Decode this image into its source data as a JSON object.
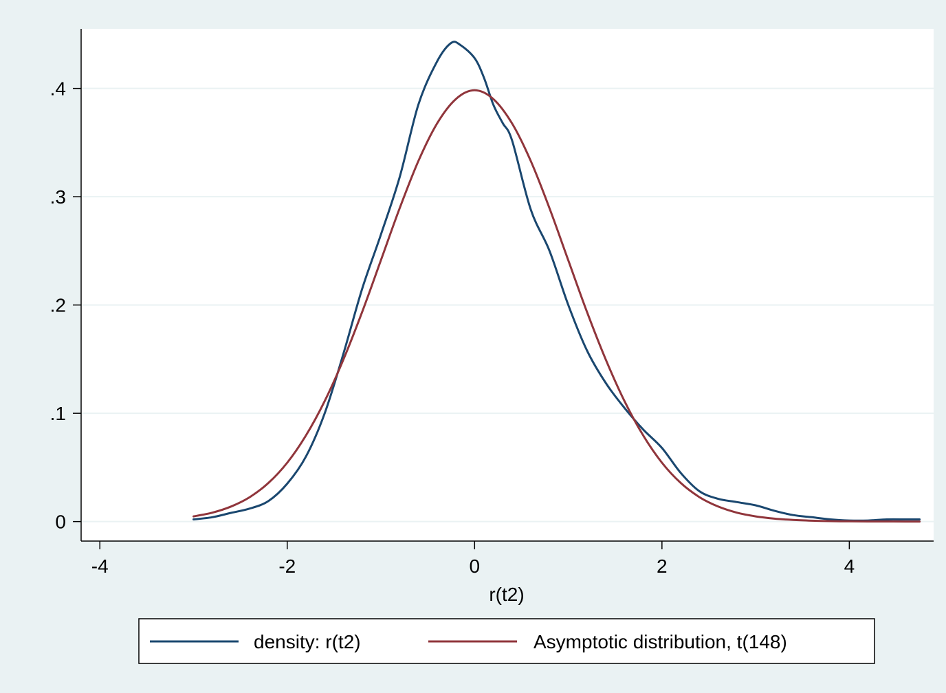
{
  "chart_data": {
    "type": "line",
    "title": "",
    "xlabel": "r(t2)",
    "ylabel": "",
    "xlim": [
      -4.2,
      4.9
    ],
    "ylim": [
      -0.018,
      0.455
    ],
    "grid": true,
    "legend_position": "bottom",
    "x_ticks": [
      {
        "value": -4,
        "label": "-4"
      },
      {
        "value": -2,
        "label": "-2"
      },
      {
        "value": 0,
        "label": "0"
      },
      {
        "value": 2,
        "label": "2"
      },
      {
        "value": 4,
        "label": "4"
      }
    ],
    "y_ticks": [
      {
        "value": 0,
        "label": "0"
      },
      {
        "value": 0.1,
        "label": ".1"
      },
      {
        "value": 0.2,
        "label": ".2"
      },
      {
        "value": 0.3,
        "label": ".3"
      },
      {
        "value": 0.4,
        "label": ".4"
      }
    ],
    "series": [
      {
        "name": "density: r(t2)",
        "color": "#1a476f",
        "points": [
          [
            -3.0,
            0.002
          ],
          [
            -2.8,
            0.004
          ],
          [
            -2.6,
            0.008
          ],
          [
            -2.4,
            0.012
          ],
          [
            -2.2,
            0.019
          ],
          [
            -2.0,
            0.035
          ],
          [
            -1.8,
            0.06
          ],
          [
            -1.6,
            0.1
          ],
          [
            -1.4,
            0.155
          ],
          [
            -1.2,
            0.215
          ],
          [
            -1.0,
            0.265
          ],
          [
            -0.8,
            0.318
          ],
          [
            -0.6,
            0.385
          ],
          [
            -0.4,
            0.425
          ],
          [
            -0.25,
            0.442
          ],
          [
            -0.15,
            0.44
          ],
          [
            0.0,
            0.428
          ],
          [
            0.1,
            0.41
          ],
          [
            0.2,
            0.385
          ],
          [
            0.3,
            0.368
          ],
          [
            0.4,
            0.352
          ],
          [
            0.6,
            0.288
          ],
          [
            0.8,
            0.25
          ],
          [
            1.0,
            0.2
          ],
          [
            1.2,
            0.158
          ],
          [
            1.4,
            0.128
          ],
          [
            1.6,
            0.105
          ],
          [
            1.8,
            0.085
          ],
          [
            2.0,
            0.068
          ],
          [
            2.2,
            0.045
          ],
          [
            2.4,
            0.028
          ],
          [
            2.6,
            0.021
          ],
          [
            2.8,
            0.018
          ],
          [
            3.0,
            0.015
          ],
          [
            3.2,
            0.01
          ],
          [
            3.4,
            0.006
          ],
          [
            3.6,
            0.004
          ],
          [
            3.8,
            0.002
          ],
          [
            4.0,
            0.001
          ],
          [
            4.2,
            0.001
          ],
          [
            4.4,
            0.002
          ],
          [
            4.6,
            0.002
          ],
          [
            4.75,
            0.002
          ]
        ]
      },
      {
        "name": "Asymptotic distribution, t(148)",
        "color": "#90353b",
        "df": 148,
        "points": [
          [
            -3.0,
            0.0048
          ],
          [
            -2.8,
            0.0082
          ],
          [
            -2.6,
            0.0139
          ],
          [
            -2.4,
            0.0226
          ],
          [
            -2.2,
            0.0357
          ],
          [
            -2.0,
            0.0544
          ],
          [
            -1.8,
            0.0795
          ],
          [
            -1.6,
            0.1113
          ],
          [
            -1.4,
            0.1497
          ],
          [
            -1.2,
            0.1936
          ],
          [
            -1.0,
            0.2413
          ],
          [
            -0.8,
            0.2893
          ],
          [
            -0.6,
            0.3329
          ],
          [
            -0.4,
            0.3677
          ],
          [
            -0.2,
            0.3902
          ],
          [
            0.0,
            0.3983
          ],
          [
            0.2,
            0.3902
          ],
          [
            0.4,
            0.3677
          ],
          [
            0.6,
            0.3329
          ],
          [
            0.8,
            0.2893
          ],
          [
            1.0,
            0.2413
          ],
          [
            1.2,
            0.1936
          ],
          [
            1.4,
            0.1497
          ],
          [
            1.6,
            0.1113
          ],
          [
            1.8,
            0.0795
          ],
          [
            2.0,
            0.0544
          ],
          [
            2.2,
            0.0357
          ],
          [
            2.4,
            0.0226
          ],
          [
            2.6,
            0.0139
          ],
          [
            2.8,
            0.0082
          ],
          [
            3.0,
            0.0048
          ],
          [
            3.2,
            0.0027
          ],
          [
            3.4,
            0.0015
          ],
          [
            3.6,
            0.0008
          ],
          [
            3.8,
            0.0004
          ],
          [
            4.0,
            0.0002
          ],
          [
            4.2,
            0.0001
          ],
          [
            4.4,
            0.0001
          ],
          [
            4.6,
            0.0
          ],
          [
            4.75,
            0.0
          ]
        ]
      }
    ]
  },
  "colors": {
    "background": "#eaf2f3",
    "plot_background": "#ffffff",
    "grid": "#eaf2f3",
    "axis": "#000000"
  }
}
